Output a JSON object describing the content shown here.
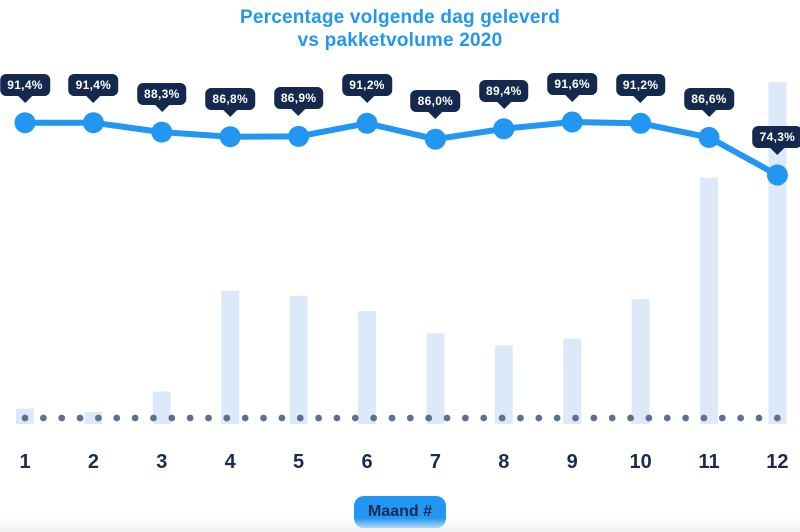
{
  "title": {
    "line1": "Percentage volgende dag geleverd",
    "line2": "vs pakketvolume 2020"
  },
  "x_axis": {
    "label": "Maand #",
    "months": [
      "1",
      "2",
      "3",
      "4",
      "5",
      "6",
      "7",
      "8",
      "9",
      "10",
      "11",
      "12"
    ]
  },
  "chart_data": {
    "type": "combo (line + bar)",
    "title": "Percentage volgende dag geleverd vs pakketvolume 2020",
    "xlabel": "Maand #",
    "ylabel": "",
    "categories": [
      1,
      2,
      3,
      4,
      5,
      6,
      7,
      8,
      9,
      10,
      11,
      12
    ],
    "series": [
      {
        "name": "Percentage volgende dag geleverd",
        "type": "line",
        "unit": "%",
        "values": [
          91.4,
          91.4,
          88.3,
          86.8,
          86.9,
          91.2,
          86.0,
          89.4,
          91.6,
          91.2,
          86.6,
          74.3
        ],
        "point_labels": [
          "91,4%",
          "91,4%",
          "88,3%",
          "86,8%",
          "86,9%",
          "91,2%",
          "86,0%",
          "89,4%",
          "91,6%",
          "91,2%",
          "86,6%",
          "74,3%"
        ]
      },
      {
        "name": "Pakketvolume 2020",
        "type": "bar",
        "unit": "relative volume (estimated, max = 100)",
        "values": [
          4.5,
          3.5,
          9.5,
          39,
          37.5,
          33,
          26.5,
          23,
          25,
          36.5,
          72,
          100
        ]
      }
    ],
    "legend": "none",
    "grid": false,
    "baseline_style": "dotted gray-blue line at x-axis"
  },
  "colors": {
    "accent_blue": "#2196f2",
    "badge_navy": "#14294d",
    "label_navy": "#1a2b52",
    "bar_fill": "#dbe9f8",
    "baseline_dot": "#5e7090",
    "background": "#ffffff"
  }
}
